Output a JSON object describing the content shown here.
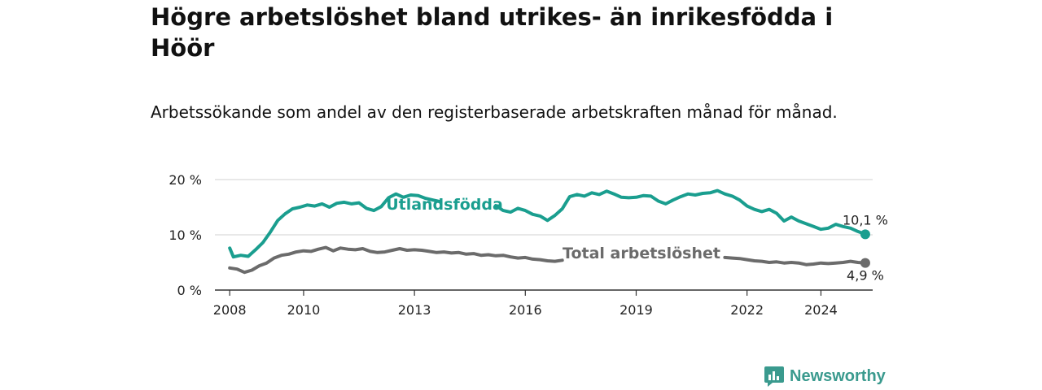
{
  "title": "Högre arbetslöshet bland utrikes- än inrikesfödda i Höör",
  "subtitle": "Arbetssökande som andel av den registerbaserade arbetskraften månad för månad.",
  "brand": "Newsworthy",
  "colors": {
    "accent": "#1a9e8f",
    "total": "#6b6b6b",
    "grid": "#d9d9d9",
    "brand": "#3a9a8e"
  },
  "chart_data": {
    "type": "line",
    "y_ticks": [
      "0 %",
      "10 %",
      "20 %"
    ],
    "x_ticks": [
      "2008",
      "2010",
      "2013",
      "2016",
      "2019",
      "2022",
      "2024"
    ],
    "ylim": [
      0,
      20
    ],
    "xlim": [
      2007.6,
      2025.4
    ],
    "grid": true,
    "series": [
      {
        "name": "Utlandsfödda",
        "end_label": "10,1 %",
        "segments": [
          [
            [
              2008.0,
              7.6
            ],
            [
              2008.1,
              6.0
            ],
            [
              2008.3,
              6.3
            ],
            [
              2008.5,
              6.1
            ],
            [
              2008.7,
              7.3
            ],
            [
              2008.9,
              8.6
            ],
            [
              2009.1,
              10.5
            ],
            [
              2009.3,
              12.6
            ],
            [
              2009.5,
              13.8
            ],
            [
              2009.7,
              14.7
            ],
            [
              2009.9,
              15.0
            ],
            [
              2010.1,
              15.4
            ],
            [
              2010.3,
              15.2
            ],
            [
              2010.5,
              15.6
            ],
            [
              2010.7,
              15.0
            ],
            [
              2010.9,
              15.7
            ],
            [
              2011.1,
              15.9
            ],
            [
              2011.3,
              15.6
            ],
            [
              2011.5,
              15.8
            ],
            [
              2011.7,
              14.8
            ],
            [
              2011.9,
              14.4
            ],
            [
              2012.1,
              15.1
            ],
            [
              2012.3,
              16.7
            ],
            [
              2012.5,
              17.4
            ],
            [
              2012.7,
              16.8
            ],
            [
              2012.9,
              17.2
            ],
            [
              2013.1,
              17.1
            ],
            [
              2013.3,
              16.6
            ],
            [
              2013.5,
              16.3
            ],
            [
              2013.7,
              16.0
            ]
          ],
          [
            [
              2015.2,
              15.3
            ],
            [
              2015.4,
              14.4
            ],
            [
              2015.6,
              14.1
            ],
            [
              2015.8,
              14.8
            ],
            [
              2016.0,
              14.4
            ],
            [
              2016.2,
              13.7
            ],
            [
              2016.4,
              13.4
            ],
            [
              2016.6,
              12.6
            ],
            [
              2016.8,
              13.5
            ],
            [
              2017.0,
              14.7
            ],
            [
              2017.2,
              16.9
            ],
            [
              2017.4,
              17.3
            ],
            [
              2017.6,
              17.0
            ],
            [
              2017.8,
              17.6
            ],
            [
              2018.0,
              17.3
            ],
            [
              2018.2,
              17.9
            ],
            [
              2018.4,
              17.4
            ],
            [
              2018.6,
              16.8
            ],
            [
              2018.8,
              16.7
            ],
            [
              2019.0,
              16.8
            ],
            [
              2019.2,
              17.1
            ],
            [
              2019.4,
              17.0
            ],
            [
              2019.6,
              16.1
            ],
            [
              2019.8,
              15.6
            ],
            [
              2020.0,
              16.3
            ],
            [
              2020.2,
              16.9
            ],
            [
              2020.4,
              17.4
            ],
            [
              2020.6,
              17.2
            ],
            [
              2020.8,
              17.5
            ],
            [
              2021.0,
              17.6
            ],
            [
              2021.2,
              18.0
            ],
            [
              2021.4,
              17.4
            ],
            [
              2021.6,
              17.0
            ],
            [
              2021.8,
              16.3
            ],
            [
              2022.0,
              15.2
            ],
            [
              2022.2,
              14.6
            ],
            [
              2022.4,
              14.2
            ],
            [
              2022.6,
              14.6
            ],
            [
              2022.8,
              13.9
            ],
            [
              2023.0,
              12.5
            ],
            [
              2023.2,
              13.2
            ],
            [
              2023.4,
              12.5
            ],
            [
              2023.6,
              12.0
            ],
            [
              2023.8,
              11.5
            ],
            [
              2024.0,
              11.0
            ],
            [
              2024.2,
              11.2
            ],
            [
              2024.4,
              11.9
            ],
            [
              2024.6,
              11.5
            ],
            [
              2024.8,
              11.2
            ],
            [
              2025.0,
              10.6
            ],
            [
              2025.2,
              10.1
            ]
          ]
        ]
      },
      {
        "name": "Total arbetslöshet",
        "end_label": "4,9 %",
        "segments": [
          [
            [
              2008.0,
              4.0
            ],
            [
              2008.2,
              3.8
            ],
            [
              2008.4,
              3.2
            ],
            [
              2008.6,
              3.6
            ],
            [
              2008.8,
              4.4
            ],
            [
              2009.0,
              4.9
            ],
            [
              2009.2,
              5.8
            ],
            [
              2009.4,
              6.3
            ],
            [
              2009.6,
              6.5
            ],
            [
              2009.8,
              6.9
            ],
            [
              2010.0,
              7.1
            ],
            [
              2010.2,
              7.0
            ],
            [
              2010.4,
              7.4
            ],
            [
              2010.6,
              7.7
            ],
            [
              2010.8,
              7.1
            ],
            [
              2011.0,
              7.6
            ],
            [
              2011.2,
              7.4
            ],
            [
              2011.4,
              7.3
            ],
            [
              2011.6,
              7.5
            ],
            [
              2011.8,
              7.0
            ],
            [
              2012.0,
              6.8
            ],
            [
              2012.2,
              6.9
            ],
            [
              2012.4,
              7.2
            ],
            [
              2012.6,
              7.5
            ],
            [
              2012.8,
              7.2
            ],
            [
              2013.0,
              7.3
            ],
            [
              2013.2,
              7.2
            ],
            [
              2013.4,
              7.0
            ],
            [
              2013.6,
              6.8
            ],
            [
              2013.8,
              6.9
            ],
            [
              2014.0,
              6.7
            ],
            [
              2014.2,
              6.8
            ],
            [
              2014.4,
              6.5
            ],
            [
              2014.6,
              6.6
            ],
            [
              2014.8,
              6.3
            ],
            [
              2015.0,
              6.4
            ],
            [
              2015.2,
              6.2
            ],
            [
              2015.4,
              6.3
            ],
            [
              2015.6,
              6.0
            ],
            [
              2015.8,
              5.8
            ],
            [
              2016.0,
              5.9
            ],
            [
              2016.2,
              5.6
            ],
            [
              2016.4,
              5.5
            ],
            [
              2016.6,
              5.3
            ],
            [
              2016.8,
              5.2
            ],
            [
              2017.0,
              5.4
            ]
          ],
          [
            [
              2021.4,
              5.9
            ],
            [
              2021.6,
              5.8
            ],
            [
              2021.8,
              5.7
            ],
            [
              2022.0,
              5.5
            ],
            [
              2022.2,
              5.3
            ],
            [
              2022.4,
              5.2
            ],
            [
              2022.6,
              5.0
            ],
            [
              2022.8,
              5.1
            ],
            [
              2023.0,
              4.9
            ],
            [
              2023.2,
              5.0
            ],
            [
              2023.4,
              4.9
            ],
            [
              2023.6,
              4.6
            ],
            [
              2023.8,
              4.7
            ],
            [
              2024.0,
              4.9
            ],
            [
              2024.2,
              4.8
            ],
            [
              2024.4,
              4.9
            ],
            [
              2024.6,
              5.0
            ],
            [
              2024.8,
              5.2
            ],
            [
              2025.0,
              5.0
            ],
            [
              2025.2,
              4.9
            ]
          ]
        ]
      }
    ]
  }
}
